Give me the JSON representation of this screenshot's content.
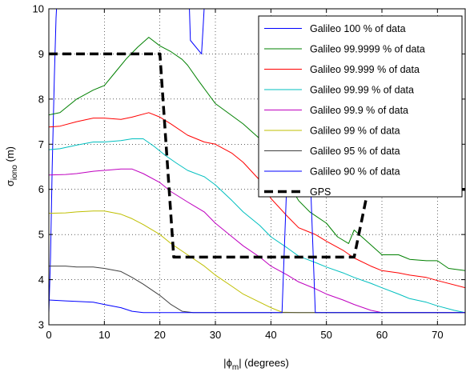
{
  "chart_data": {
    "type": "line",
    "title": "",
    "xlabel": {
      "prefix": "|",
      "symbol": "ϕ",
      "sub": "m",
      "suffix": "| (degrees)"
    },
    "ylabel": {
      "symbol": "σ",
      "sub": "iono",
      "suffix": " (m)"
    },
    "xlim": [
      0,
      75
    ],
    "ylim": [
      3,
      10
    ],
    "xticks": [
      "0",
      "10",
      "20",
      "30",
      "40",
      "50",
      "60",
      "70"
    ],
    "yticks": [
      "3",
      "4",
      "5",
      "6",
      "7",
      "8",
      "9",
      "10"
    ],
    "grid": true,
    "legend_position": "top-right",
    "series": [
      {
        "name": "Galileo 100 % of data",
        "color": "#0000ff",
        "dashed": false,
        "x": [
          0,
          0.3,
          0.6,
          1,
          1.3,
          1.6,
          2,
          2.2,
          25,
          25.2,
          25.5,
          27.5,
          27.8,
          28.2
        ],
        "y": [
          3.27,
          4.5,
          6.5,
          8.5,
          9.8,
          10.5,
          10.5,
          10.5,
          10.5,
          10.5,
          9.3,
          9.0,
          9.6,
          10.5
        ]
      },
      {
        "name": "Galileo 99.9999 % of data",
        "color": "#008000",
        "dashed": false,
        "x": [
          0,
          2,
          3,
          5,
          8,
          10,
          12,
          14,
          16,
          18,
          20,
          22,
          24,
          25,
          27,
          30,
          35,
          40,
          43,
          45,
          47,
          50,
          52,
          54,
          55,
          57,
          60,
          63,
          65,
          68,
          70,
          72,
          75
        ],
        "y": [
          7.65,
          7.7,
          7.8,
          8.0,
          8.2,
          8.3,
          8.6,
          8.9,
          9.15,
          9.37,
          9.18,
          9.05,
          8.88,
          8.75,
          8.4,
          7.9,
          7.45,
          6.9,
          6.15,
          5.75,
          5.5,
          5.25,
          4.95,
          4.8,
          5.1,
          4.88,
          4.55,
          4.55,
          4.45,
          4.42,
          4.42,
          4.25,
          4.2
        ]
      },
      {
        "name": "Galileo 99.999 % of data",
        "color": "#ff0000",
        "dashed": false,
        "x": [
          0,
          2,
          5,
          8,
          10,
          13,
          15,
          18,
          20,
          22,
          25,
          28,
          30,
          33,
          35,
          38,
          40,
          43,
          45,
          48,
          50,
          53,
          55,
          58,
          60,
          63,
          65,
          68,
          70,
          75
        ],
        "y": [
          7.38,
          7.4,
          7.5,
          7.58,
          7.58,
          7.55,
          7.6,
          7.7,
          7.6,
          7.45,
          7.2,
          7.05,
          7.0,
          6.8,
          6.6,
          6.2,
          5.8,
          5.4,
          5.15,
          5.0,
          4.85,
          4.65,
          4.48,
          4.3,
          4.2,
          4.15,
          4.1,
          4.05,
          3.98,
          3.82
        ]
      },
      {
        "name": "Galileo 99.99 % of data",
        "color": "#00bfbf",
        "dashed": false,
        "x": [
          0,
          2,
          5,
          8,
          10,
          13,
          15,
          17,
          19,
          21,
          23,
          25,
          28,
          30,
          33,
          35,
          38,
          40,
          43,
          45,
          48,
          50,
          53,
          55,
          58,
          60,
          63,
          65,
          68,
          70,
          73,
          75
        ],
        "y": [
          6.88,
          6.9,
          6.98,
          7.05,
          7.05,
          7.08,
          7.12,
          7.12,
          6.95,
          6.75,
          6.58,
          6.42,
          6.28,
          6.1,
          5.75,
          5.5,
          5.2,
          4.95,
          4.7,
          4.52,
          4.38,
          4.28,
          4.15,
          4.05,
          3.92,
          3.82,
          3.68,
          3.58,
          3.5,
          3.42,
          3.32,
          3.27
        ]
      },
      {
        "name": "Galileo 99.9 % of data",
        "color": "#bf00bf",
        "dashed": false,
        "x": [
          0,
          3,
          5,
          8,
          10,
          13,
          15,
          17,
          20,
          22,
          25,
          28,
          30,
          33,
          35,
          38,
          40,
          43,
          45,
          48,
          50,
          53,
          55,
          58,
          60,
          63,
          65,
          75
        ],
        "y": [
          6.32,
          6.33,
          6.35,
          6.4,
          6.42,
          6.45,
          6.45,
          6.35,
          6.15,
          5.95,
          5.72,
          5.5,
          5.25,
          4.95,
          4.75,
          4.5,
          4.3,
          4.1,
          3.95,
          3.8,
          3.68,
          3.55,
          3.45,
          3.32,
          3.27,
          3.27,
          3.27,
          3.27
        ]
      },
      {
        "name": "Galileo 99 % of data",
        "color": "#bfbf00",
        "dashed": false,
        "x": [
          0,
          3,
          5,
          8,
          10,
          13,
          15,
          17,
          20,
          22,
          25,
          28,
          30,
          33,
          35,
          38,
          40,
          42,
          45,
          50,
          55,
          60,
          65,
          70,
          75
        ],
        "y": [
          5.47,
          5.48,
          5.5,
          5.52,
          5.52,
          5.45,
          5.35,
          5.22,
          5.0,
          4.8,
          4.55,
          4.3,
          4.1,
          3.85,
          3.68,
          3.5,
          3.38,
          3.28,
          3.27,
          3.27,
          3.27,
          3.27,
          3.27,
          3.27,
          3.27
        ]
      },
      {
        "name": "Galileo 95 % of data",
        "color": "#404040",
        "dashed": false,
        "x": [
          0,
          3,
          5,
          8,
          10,
          13,
          15,
          17,
          20,
          22,
          24,
          26,
          28,
          30,
          35,
          40,
          45,
          50,
          55,
          60,
          65,
          70,
          75
        ],
        "y": [
          4.3,
          4.3,
          4.28,
          4.28,
          4.25,
          4.18,
          4.05,
          3.9,
          3.65,
          3.45,
          3.3,
          3.27,
          3.27,
          3.27,
          3.27,
          3.27,
          3.27,
          3.27,
          3.27,
          3.27,
          3.27,
          3.27,
          3.27
        ]
      },
      {
        "name": "Galileo 90 % of data",
        "color": "#0000ff",
        "dashed": false,
        "x": [
          0,
          3,
          5,
          8,
          10,
          13,
          15,
          17,
          20,
          25,
          30,
          35,
          40,
          42,
          43,
          45,
          47,
          48,
          50,
          55,
          60,
          65,
          70,
          75
        ],
        "y": [
          3.55,
          3.53,
          3.52,
          3.5,
          3.45,
          3.38,
          3.3,
          3.27,
          3.27,
          3.27,
          3.27,
          3.27,
          3.27,
          3.27,
          6.6,
          5.85,
          6.6,
          3.27,
          3.27,
          3.27,
          3.27,
          3.27,
          3.27,
          3.27
        ]
      },
      {
        "name": "GPS",
        "color": "#000000",
        "dashed": true,
        "x": [
          0,
          20,
          22.5,
          55,
          57.5,
          75
        ],
        "y": [
          9,
          9,
          4.5,
          4.5,
          6,
          6
        ]
      }
    ]
  }
}
